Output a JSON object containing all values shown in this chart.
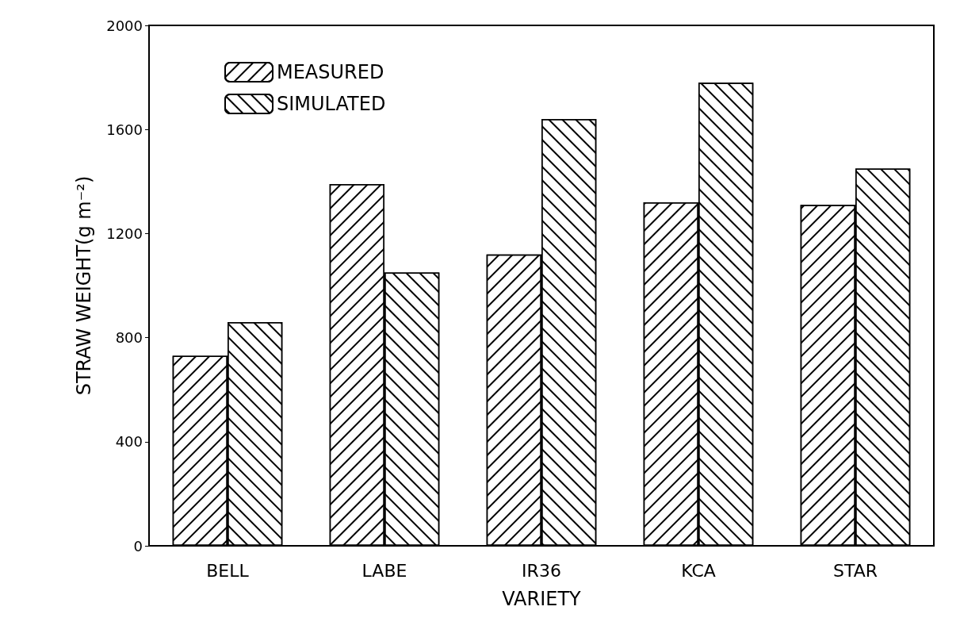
{
  "chart_data": {
    "type": "bar",
    "xlabel": "VARIETY",
    "ylabel": "STRAW WEIGHT(g m⁻²)",
    "categories": [
      "BELL",
      "LABE",
      "IR36",
      "KCA",
      "STAR"
    ],
    "series": [
      {
        "name": "MEASURED",
        "color": "#000000",
        "values": [
          730,
          1390,
          1120,
          1320,
          1310
        ]
      },
      {
        "name": "SIMULATED",
        "color": "#000000",
        "values": [
          860,
          1050,
          1640,
          1780,
          1450
        ]
      }
    ],
    "ylim": [
      0,
      2000
    ],
    "yticks": [
      0,
      400,
      800,
      1200,
      1600,
      2000
    ],
    "grid": false,
    "legend": "top left"
  }
}
